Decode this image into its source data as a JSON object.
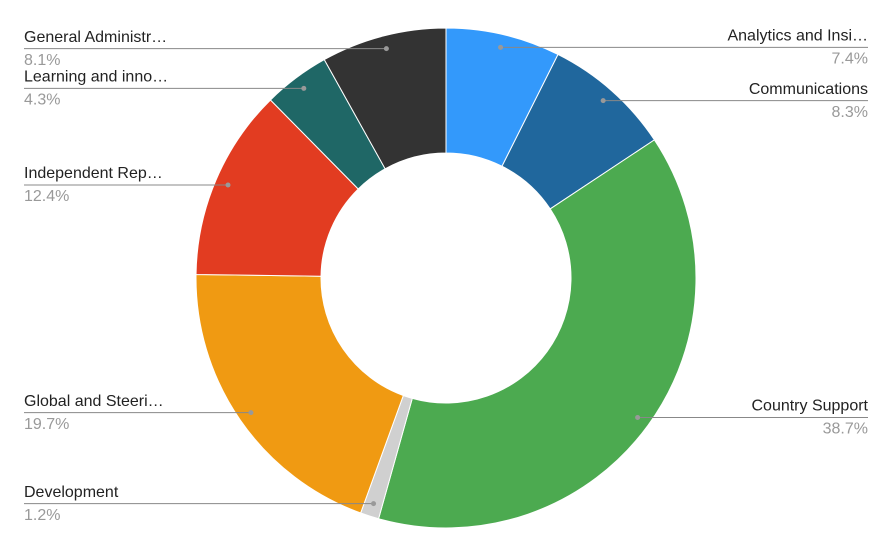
{
  "chart_data": {
    "type": "donut",
    "categories": [
      "Analytics and Insi…",
      "Communications",
      "Country Support",
      "Development",
      "Global and Steeri…",
      "Independent Rep…",
      "Learning and inno…",
      "General Administr…"
    ],
    "values": [
      7.4,
      8.3,
      38.7,
      1.2,
      19.7,
      12.4,
      4.3,
      8.1
    ],
    "value_labels": [
      "7.4%",
      "8.3%",
      "38.7%",
      "1.2%",
      "19.7%",
      "12.4%",
      "4.3%",
      "8.1%"
    ],
    "colors": [
      "#3399fb",
      "#20679d",
      "#4caa50",
      "#d0d0d0",
      "#f09a12",
      "#e23c21",
      "#1f6766",
      "#333333"
    ]
  }
}
